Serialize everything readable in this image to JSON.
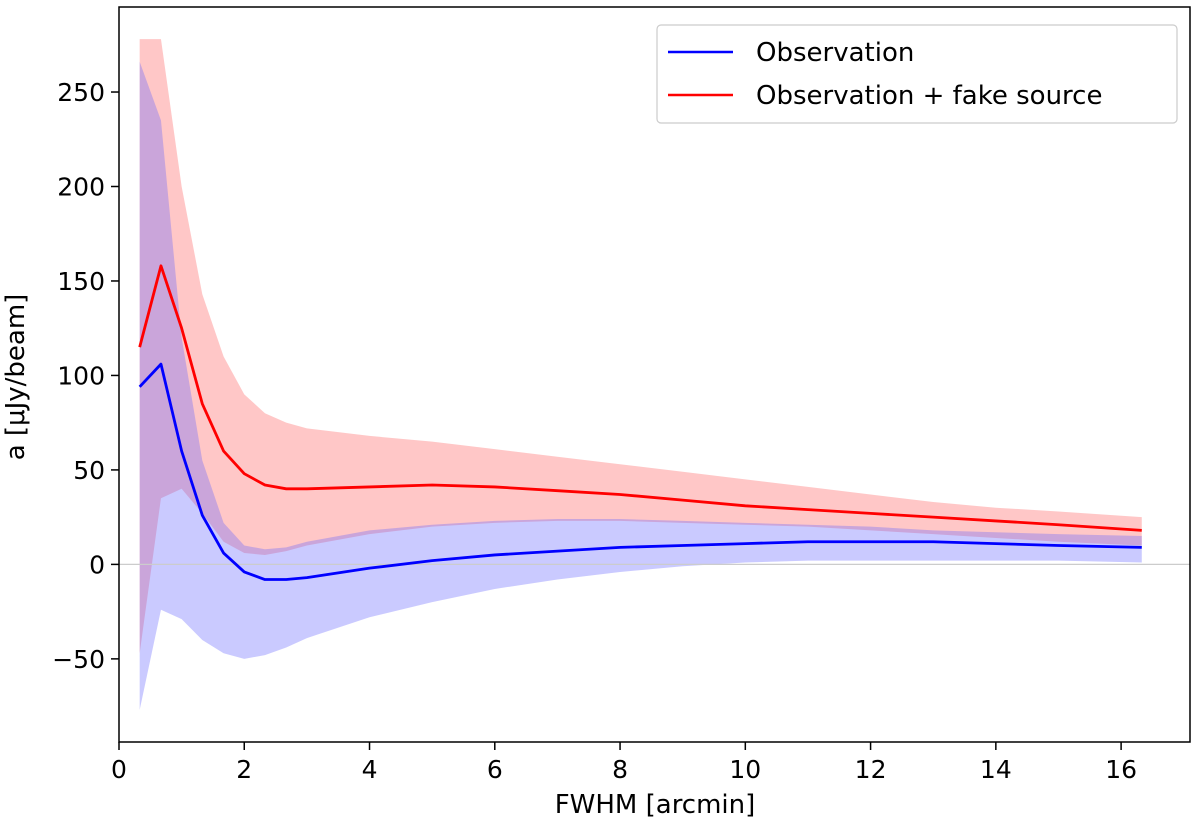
{
  "chart_data": {
    "type": "line",
    "title": "",
    "xlabel": "FWHM [arcmin]",
    "ylabel": "a [μJy/beam]",
    "xlim": [
      0,
      17.1
    ],
    "ylim": [
      -94,
      295
    ],
    "xticks": [
      0,
      2,
      4,
      6,
      8,
      10,
      12,
      14,
      16
    ],
    "yticks": [
      -50,
      0,
      50,
      100,
      150,
      200,
      250
    ],
    "ytick_labels": [
      "−50",
      "0",
      "50",
      "100",
      "150",
      "200",
      "250"
    ],
    "zero_line": true,
    "legend_position": "top-right",
    "bands": [
      {
        "name": "Observation + fake source band",
        "color": "#ff9999",
        "x": [
          0.33,
          0.67,
          1.0,
          1.33,
          1.67,
          2.0,
          2.33,
          2.67,
          3.0,
          4.0,
          5.0,
          6.0,
          7.0,
          8.0,
          9.0,
          10.0,
          11.0,
          12.0,
          13.0,
          14.0,
          15.0,
          16.33
        ],
        "upper": [
          278,
          278,
          200,
          143,
          110,
          90,
          80,
          75,
          72,
          68,
          65,
          61,
          57,
          53,
          49,
          45,
          41,
          37,
          33,
          30,
          28,
          25
        ],
        "lower": [
          -47,
          35,
          40,
          27,
          12,
          6,
          5,
          7,
          10,
          16,
          20,
          22,
          23,
          23,
          22,
          21,
          20,
          18,
          16,
          14,
          12,
          10
        ]
      },
      {
        "name": "Observation band",
        "color": "#6666ff",
        "x": [
          0.33,
          0.67,
          1.0,
          1.33,
          1.67,
          2.0,
          2.33,
          2.67,
          3.0,
          4.0,
          5.0,
          6.0,
          7.0,
          8.0,
          9.0,
          10.0,
          11.0,
          12.0,
          13.0,
          14.0,
          15.0,
          16.33
        ],
        "upper": [
          266,
          235,
          120,
          55,
          22,
          10,
          8,
          9,
          12,
          18,
          21,
          23,
          24,
          24,
          23,
          22,
          21,
          20,
          18,
          17,
          16,
          15
        ],
        "lower": [
          -77,
          -24,
          -29,
          -40,
          -47,
          -50,
          -48,
          -44,
          -39,
          -28,
          -20,
          -13,
          -8,
          -4,
          -1,
          1,
          2,
          2,
          2,
          2,
          2,
          1
        ]
      }
    ],
    "series": [
      {
        "name": "Observation",
        "color": "#0000ff",
        "x": [
          0.33,
          0.67,
          1.0,
          1.33,
          1.67,
          2.0,
          2.33,
          2.67,
          3.0,
          4.0,
          5.0,
          6.0,
          7.0,
          8.0,
          9.0,
          10.0,
          11.0,
          12.0,
          13.0,
          14.0,
          15.0,
          16.33
        ],
        "values": [
          94,
          106,
          60,
          26,
          6,
          -4,
          -8,
          -8,
          -7,
          -2,
          2,
          5,
          7,
          9,
          10,
          11,
          12,
          12,
          12,
          11,
          10,
          9
        ]
      },
      {
        "name": "Observation + fake source",
        "color": "#ff0000",
        "x": [
          0.33,
          0.67,
          1.0,
          1.33,
          1.67,
          2.0,
          2.33,
          2.67,
          3.0,
          4.0,
          5.0,
          6.0,
          7.0,
          8.0,
          9.0,
          10.0,
          11.0,
          12.0,
          13.0,
          14.0,
          15.0,
          16.33
        ],
        "values": [
          115,
          158,
          125,
          85,
          60,
          48,
          42,
          40,
          40,
          41,
          42,
          41,
          39,
          37,
          34,
          31,
          29,
          27,
          25,
          23,
          21,
          18
        ]
      }
    ]
  }
}
